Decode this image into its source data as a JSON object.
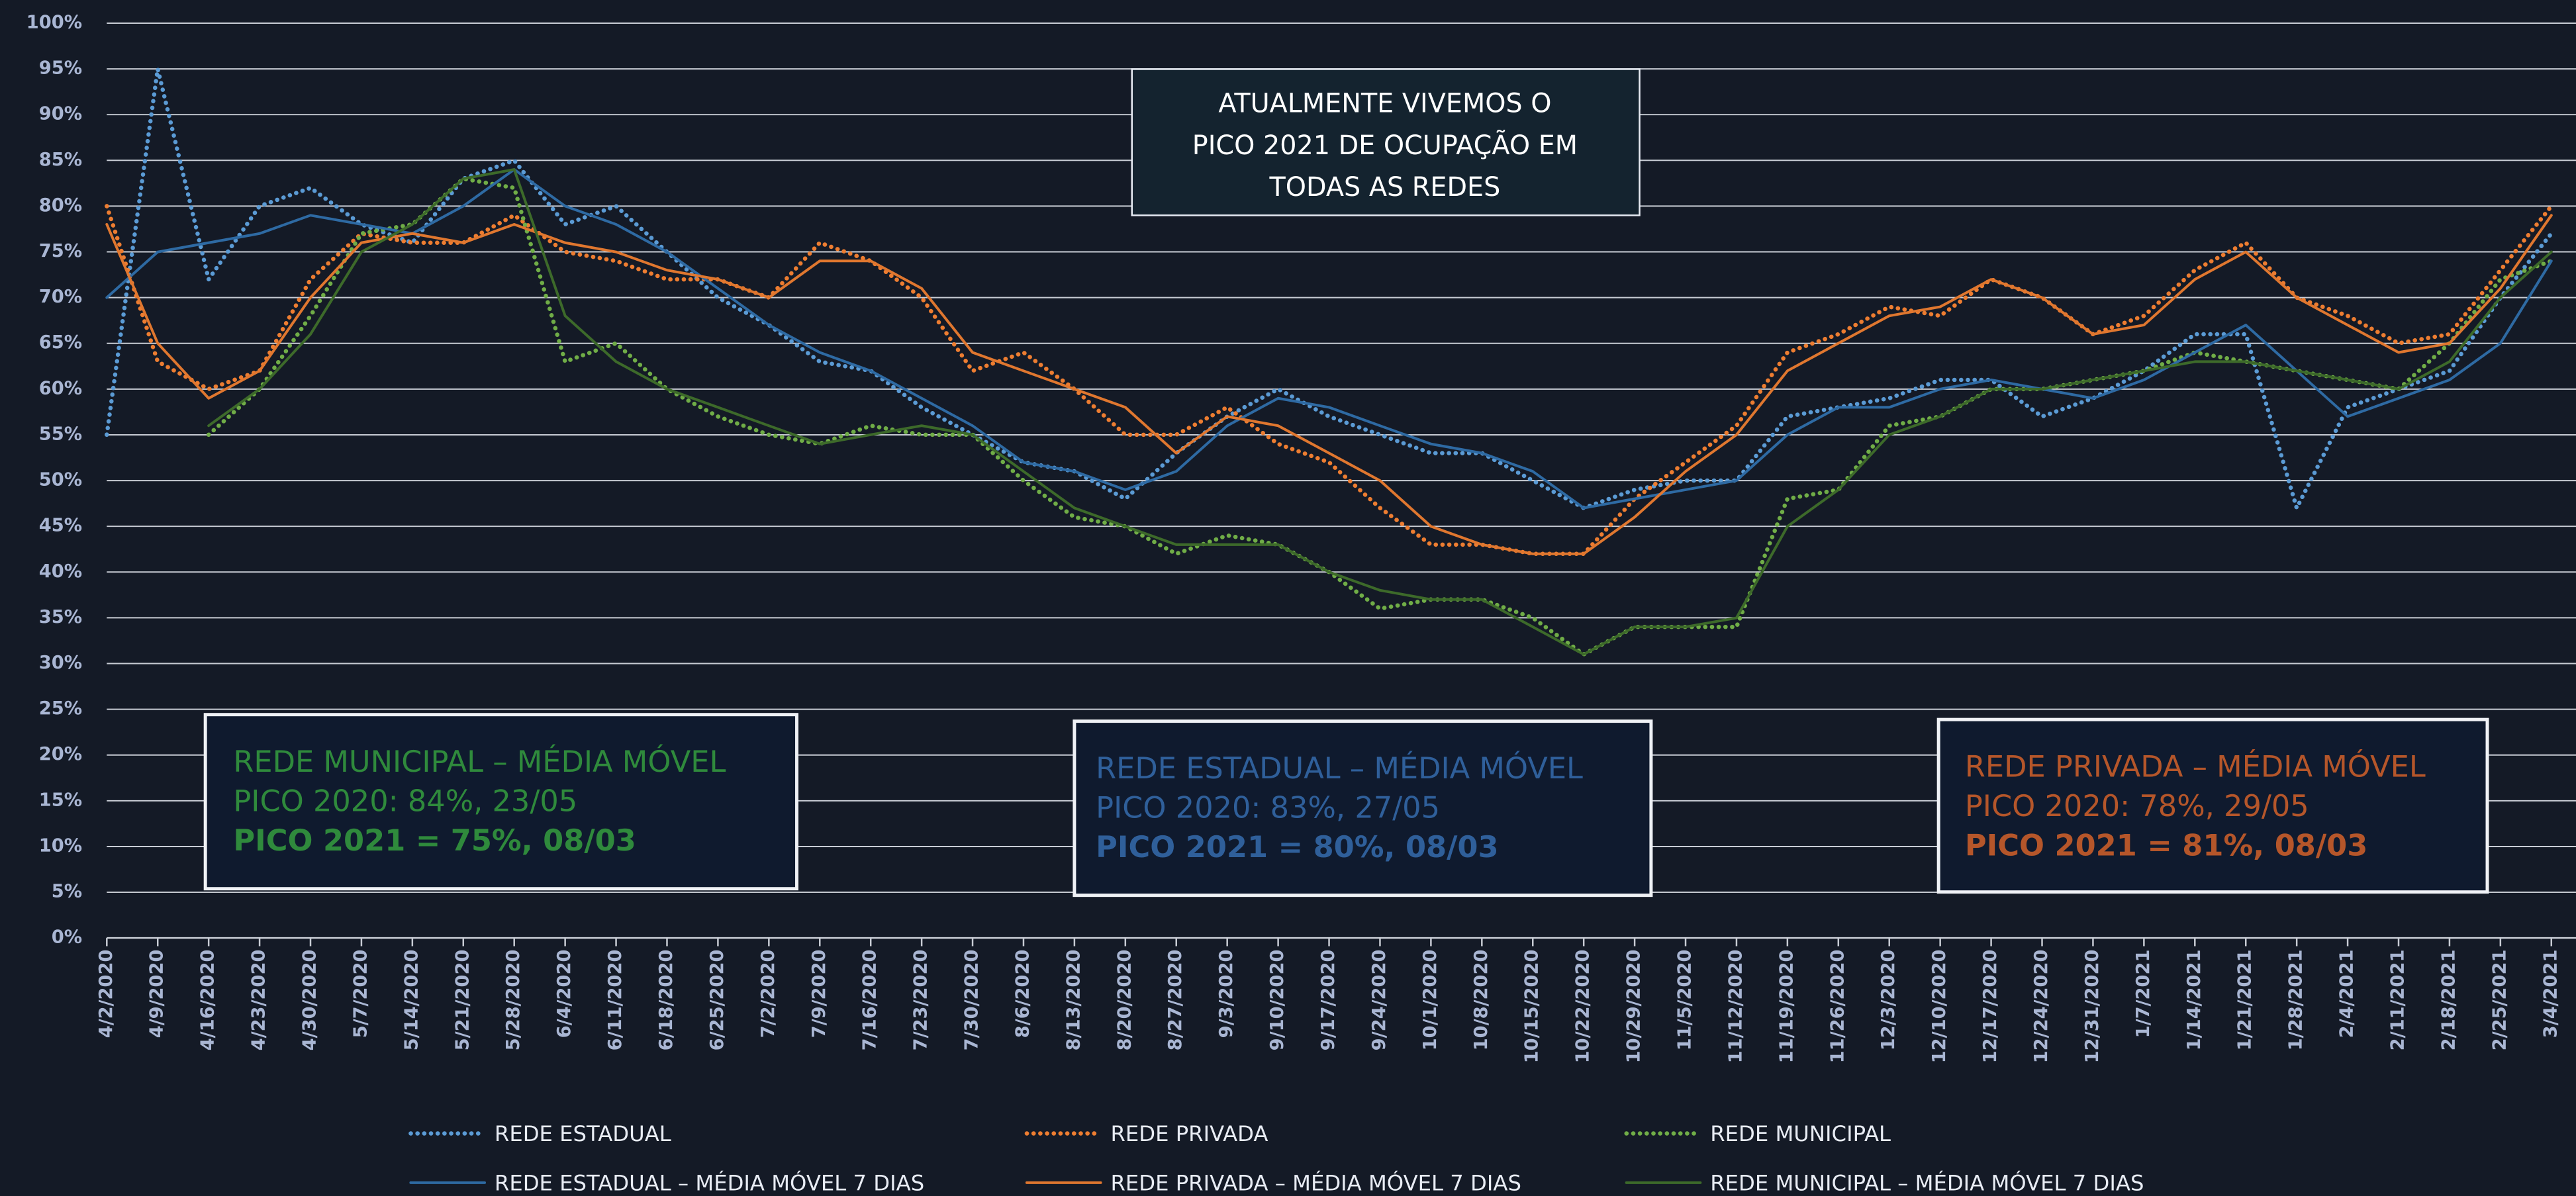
{
  "chart_data": {
    "type": "line",
    "categories": [
      "4/2/2020",
      "4/9/2020",
      "4/16/2020",
      "4/23/2020",
      "4/30/2020",
      "5/7/2020",
      "5/14/2020",
      "5/21/2020",
      "5/28/2020",
      "6/4/2020",
      "6/11/2020",
      "6/18/2020",
      "6/25/2020",
      "7/2/2020",
      "7/9/2020",
      "7/16/2020",
      "7/23/2020",
      "7/30/2020",
      "8/6/2020",
      "8/13/2020",
      "8/20/2020",
      "8/27/2020",
      "9/3/2020",
      "9/10/2020",
      "9/17/2020",
      "9/24/2020",
      "10/1/2020",
      "10/8/2020",
      "10/15/2020",
      "10/22/2020",
      "10/29/2020",
      "11/5/2020",
      "11/12/2020",
      "11/19/2020",
      "11/26/2020",
      "12/3/2020",
      "12/10/2020",
      "12/17/2020",
      "12/24/2020",
      "12/31/2020",
      "1/7/2021",
      "1/14/2021",
      "1/21/2021",
      "1/28/2021",
      "2/4/2021",
      "2/11/2021",
      "2/18/2021",
      "2/25/2021",
      "3/4/2021"
    ],
    "ylim": [
      0,
      100
    ],
    "yticks": [
      {
        "value": 0,
        "label": "0%"
      },
      {
        "value": 5,
        "label": "5%"
      },
      {
        "value": 10,
        "label": "10%"
      },
      {
        "value": 15,
        "label": "15%"
      },
      {
        "value": 20,
        "label": "20%"
      },
      {
        "value": 25,
        "label": "25%"
      },
      {
        "value": 30,
        "label": "30%"
      },
      {
        "value": 35,
        "label": "35%"
      },
      {
        "value": 40,
        "label": "40%"
      },
      {
        "value": 45,
        "label": "45%"
      },
      {
        "value": 50,
        "label": "50%"
      },
      {
        "value": 55,
        "label": "55%"
      },
      {
        "value": 60,
        "label": "60%"
      },
      {
        "value": 65,
        "label": "65%"
      },
      {
        "value": 70,
        "label": "70%"
      },
      {
        "value": 75,
        "label": "75%"
      },
      {
        "value": 80,
        "label": "80%"
      },
      {
        "value": 85,
        "label": "85%"
      },
      {
        "value": 90,
        "label": "90%"
      },
      {
        "value": 95,
        "label": "95%"
      },
      {
        "value": 100,
        "label": "100%"
      }
    ],
    "grid": true,
    "series": [
      {
        "name": "REDE ESTADUAL",
        "color": "#5b9bd5",
        "dash": "dotted",
        "values": [
          55,
          95,
          72,
          80,
          82,
          78,
          76,
          83,
          85,
          78,
          80,
          75,
          70,
          67,
          63,
          62,
          58,
          55,
          52,
          51,
          48,
          53,
          57,
          60,
          57,
          55,
          53,
          53,
          50,
          47,
          49,
          50,
          50,
          57,
          58,
          59,
          61,
          61,
          57,
          59,
          62,
          66,
          66,
          47,
          58,
          60,
          62,
          70,
          77
        ]
      },
      {
        "name": "REDE PRIVADA",
        "color": "#ed7d31",
        "dash": "dotted",
        "values": [
          80,
          63,
          60,
          62,
          72,
          77,
          76,
          76,
          79,
          75,
          74,
          72,
          72,
          70,
          76,
          74,
          70,
          62,
          64,
          60,
          55,
          55,
          58,
          54,
          52,
          47,
          43,
          43,
          42,
          42,
          48,
          52,
          56,
          64,
          66,
          69,
          68,
          72,
          70,
          66,
          68,
          73,
          76,
          70,
          68,
          65,
          66,
          73,
          80
        ]
      },
      {
        "name": "REDE MUNICIPAL",
        "color": "#70ad47",
        "dash": "dotted",
        "values": [
          null,
          null,
          55,
          60,
          68,
          77,
          78,
          83,
          82,
          63,
          65,
          60,
          57,
          55,
          54,
          56,
          55,
          55,
          50,
          46,
          45,
          42,
          44,
          43,
          40,
          36,
          37,
          37,
          35,
          31,
          34,
          34,
          34,
          48,
          49,
          56,
          57,
          60,
          60,
          61,
          62,
          64,
          63,
          62,
          61,
          60,
          65,
          72,
          74
        ]
      },
      {
        "name": "REDE ESTADUAL – MÉDIA MÓVEL 7 DIAS",
        "color": "#2e6aa3",
        "dash": "solid",
        "values": [
          70,
          75,
          76,
          77,
          79,
          78,
          77,
          80,
          84,
          80,
          78,
          75,
          71,
          67,
          64,
          62,
          59,
          56,
          52,
          51,
          49,
          51,
          56,
          59,
          58,
          56,
          54,
          53,
          51,
          47,
          48,
          49,
          50,
          55,
          58,
          58,
          60,
          61,
          60,
          59,
          61,
          64,
          67,
          62,
          57,
          59,
          61,
          65,
          74
        ]
      },
      {
        "name": "REDE PRIVADA – MÉDIA MÓVEL 7 DIAS",
        "color": "#e0772f",
        "dash": "solid",
        "values": [
          78,
          65,
          59,
          62,
          70,
          76,
          77,
          76,
          78,
          76,
          75,
          73,
          72,
          70,
          74,
          74,
          71,
          64,
          62,
          60,
          58,
          53,
          57,
          56,
          53,
          50,
          45,
          43,
          42,
          42,
          46,
          51,
          55,
          62,
          65,
          68,
          69,
          72,
          70,
          66,
          67,
          72,
          75,
          70,
          67,
          64,
          65,
          71,
          79
        ]
      },
      {
        "name": "REDE MUNICIPAL – MÉDIA MÓVEL 7 DIAS",
        "color": "#3d6a2a",
        "dash": "solid",
        "values": [
          null,
          null,
          56,
          60,
          66,
          75,
          78,
          83,
          84,
          68,
          63,
          60,
          58,
          56,
          54,
          55,
          56,
          55,
          51,
          47,
          45,
          43,
          43,
          43,
          40,
          38,
          37,
          37,
          34,
          31,
          34,
          34,
          35,
          45,
          49,
          55,
          57,
          60,
          60,
          61,
          62,
          63,
          63,
          62,
          61,
          60,
          63,
          70,
          75
        ]
      }
    ],
    "callout": {
      "lines": [
        "ATUALMENTE VIVEMOS O",
        "PICO 2021 DE OCUPAÇÃO EM",
        "TODAS AS REDES"
      ]
    },
    "annotations": [
      {
        "color": "#2f8a3c",
        "lines": [
          "REDE MUNICIPAL – MÉDIA MÓVEL",
          "PICO 2020: 84%, 23/05",
          "PICO 2021 = 75%, 08/03"
        ]
      },
      {
        "color": "#2f5f9a",
        "lines": [
          "REDE ESTADUAL – MÉDIA MÓVEL",
          "PICO 2020: 83%, 27/05",
          "PICO 2021 = 80%, 08/03"
        ]
      },
      {
        "color": "#b5562a",
        "lines": [
          "REDE PRIVADA – MÉDIA MÓVEL",
          "PICO 2020: 78%, 29/05",
          "PICO 2021 = 81%, 08/03"
        ]
      }
    ]
  }
}
